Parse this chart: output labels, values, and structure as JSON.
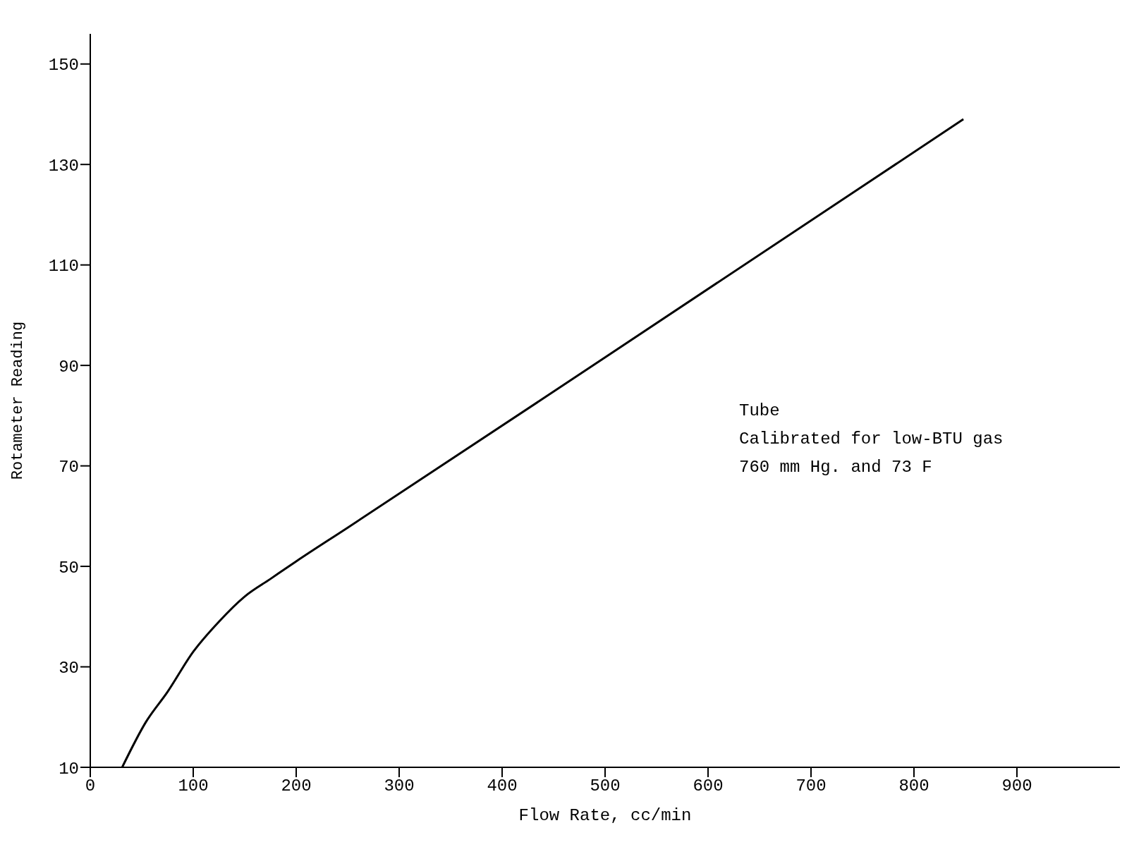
{
  "chart_data": {
    "type": "line",
    "xlabel": "Flow Rate, cc/min",
    "ylabel": "Rotameter Reading",
    "x": [
      31,
      54,
      75,
      100,
      125,
      150,
      175,
      200,
      250,
      500,
      848
    ],
    "series": [
      {
        "color": "#000000",
        "values": [
          10,
          19,
          25,
          33,
          39,
          44,
          47.5,
          51,
          57.7,
          91.6,
          139
        ]
      }
    ],
    "xlim": [
      0,
      1000
    ],
    "xticks": [
      0,
      100,
      200,
      300,
      400,
      500,
      600,
      700,
      800,
      900
    ],
    "ylim": [
      10,
      156
    ],
    "yticks": [
      10,
      30,
      50,
      70,
      90,
      110,
      130,
      150
    ],
    "grid": false,
    "legend": false,
    "marker": "none",
    "line_style": "solid",
    "annotations": [
      "Tube",
      "Calibrated for low-BTU gas",
      "760 mm Hg. and 73 F"
    ]
  }
}
